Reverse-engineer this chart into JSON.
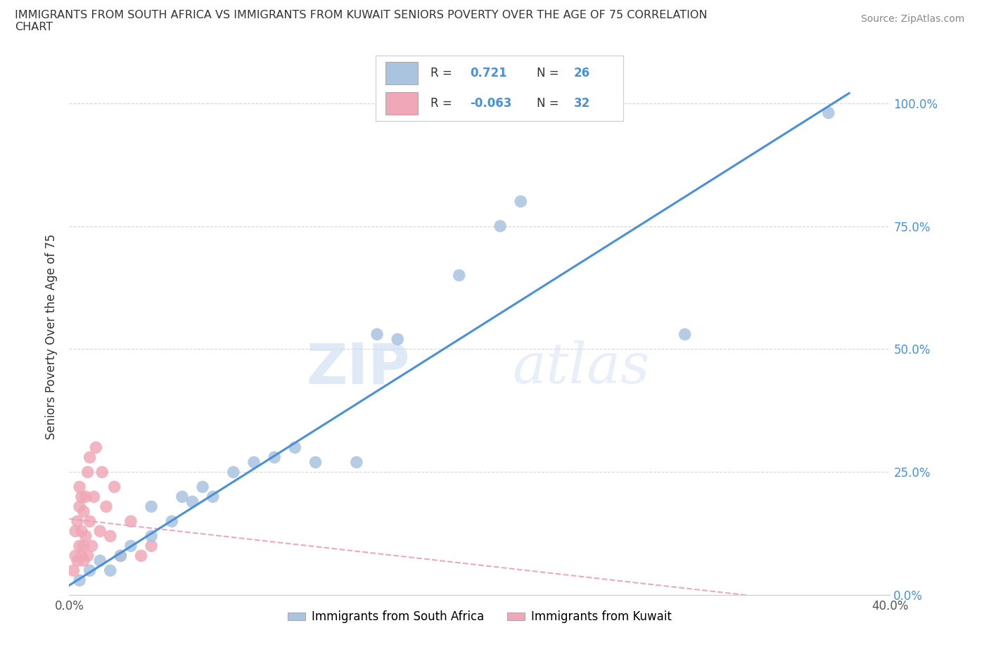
{
  "title_line1": "IMMIGRANTS FROM SOUTH AFRICA VS IMMIGRANTS FROM KUWAIT SENIORS POVERTY OVER THE AGE OF 75 CORRELATION",
  "title_line2": "CHART",
  "source": "Source: ZipAtlas.com",
  "ylabel": "Seniors Poverty Over the Age of 75",
  "watermark_zip": "ZIP",
  "watermark_atlas": "atlas",
  "sa_R": 0.721,
  "sa_N": 26,
  "kw_R": -0.063,
  "kw_N": 32,
  "sa_color": "#aac4e0",
  "kw_color": "#f0a8b8",
  "sa_line_color": "#4a90d9",
  "kw_line_color": "#e8a0b8",
  "xlim": [
    0.0,
    0.4
  ],
  "ylim": [
    0.0,
    1.05
  ],
  "legend_label1": "Immigrants from South Africa",
  "legend_label2": "Immigrants from Kuwait",
  "sa_x": [
    0.005,
    0.01,
    0.015,
    0.02,
    0.025,
    0.03,
    0.04,
    0.04,
    0.05,
    0.055,
    0.06,
    0.065,
    0.07,
    0.08,
    0.09,
    0.1,
    0.11,
    0.12,
    0.14,
    0.15,
    0.16,
    0.19,
    0.21,
    0.22,
    0.3,
    0.37
  ],
  "sa_y": [
    0.03,
    0.05,
    0.07,
    0.05,
    0.08,
    0.1,
    0.12,
    0.18,
    0.15,
    0.2,
    0.19,
    0.22,
    0.2,
    0.25,
    0.27,
    0.28,
    0.3,
    0.27,
    0.27,
    0.53,
    0.52,
    0.65,
    0.75,
    0.8,
    0.53,
    0.98
  ],
  "kw_x": [
    0.002,
    0.003,
    0.003,
    0.004,
    0.004,
    0.005,
    0.005,
    0.005,
    0.006,
    0.006,
    0.006,
    0.007,
    0.007,
    0.007,
    0.008,
    0.008,
    0.009,
    0.009,
    0.01,
    0.01,
    0.011,
    0.012,
    0.013,
    0.015,
    0.016,
    0.018,
    0.02,
    0.022,
    0.025,
    0.03,
    0.035,
    0.04
  ],
  "kw_y": [
    0.05,
    0.08,
    0.13,
    0.07,
    0.15,
    0.1,
    0.18,
    0.22,
    0.08,
    0.13,
    0.2,
    0.07,
    0.1,
    0.17,
    0.12,
    0.2,
    0.25,
    0.08,
    0.15,
    0.28,
    0.1,
    0.2,
    0.3,
    0.13,
    0.25,
    0.18,
    0.12,
    0.22,
    0.08,
    0.15,
    0.08,
    0.1
  ],
  "sa_line_x0": 0.0,
  "sa_line_y0": 0.02,
  "sa_line_x1": 0.38,
  "sa_line_y1": 1.02,
  "kw_line_x0": 0.0,
  "kw_line_y0": 0.155,
  "kw_line_x1": 0.33,
  "kw_line_y1": 0.0
}
